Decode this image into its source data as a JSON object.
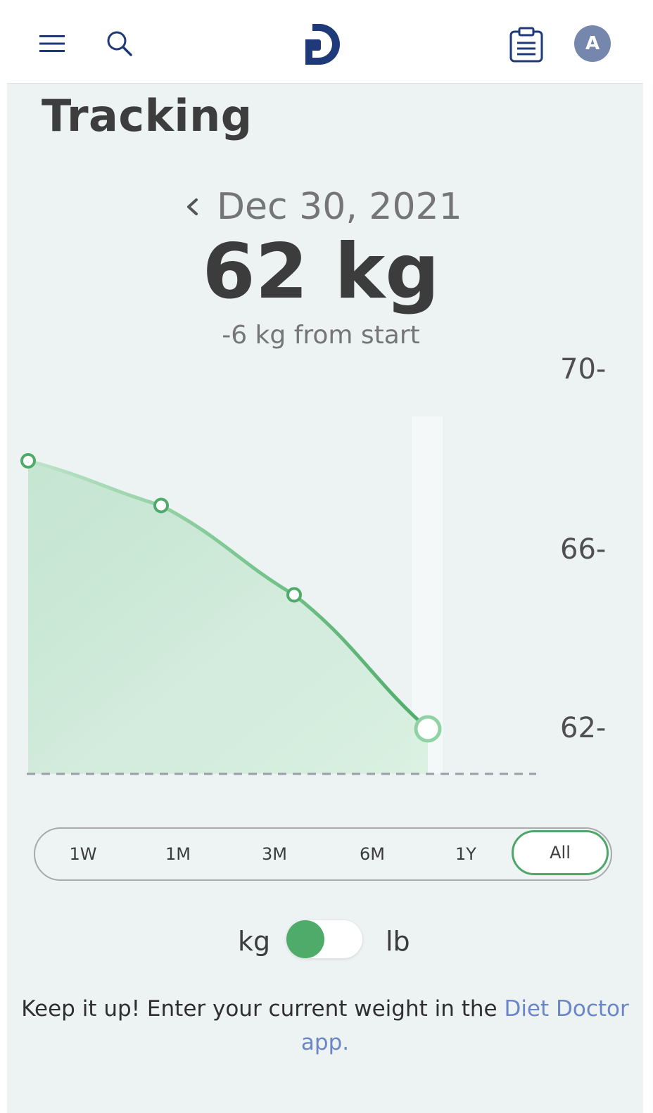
{
  "header": {
    "menu_icon": "hamburger-menu-icon",
    "search_icon": "search-icon",
    "logo_icon": "diet-doctor-logo-icon",
    "notes_icon": "clipboard-icon",
    "avatar_initial": "A",
    "brand_color": "#1f3a7a",
    "avatar_color": "#7587ad"
  },
  "page": {
    "title": "Tracking"
  },
  "summary": {
    "prev_icon": "chevron-left-icon",
    "date": "Dec 30, 2021",
    "current_weight": "62 kg",
    "change": "-6 kg from start"
  },
  "chart_data": {
    "type": "area",
    "x": [
      1,
      2,
      3,
      4
    ],
    "values": [
      68,
      67,
      65,
      62
    ],
    "selected_index": 3,
    "y_ticks": [
      "70-",
      "66-",
      "62-"
    ],
    "ylim": [
      61,
      70
    ],
    "line_color": "#4eab69",
    "grid": false
  },
  "periods": {
    "options": [
      "1W",
      "1M",
      "3M",
      "6M",
      "1Y",
      "All"
    ],
    "selected": "All",
    "accent": "#4ea769"
  },
  "units": {
    "left": "kg",
    "right": "lb",
    "selected": "kg"
  },
  "footer": {
    "message": "Keep it up! Enter your current weight in the ",
    "link": "Diet Doctor app."
  }
}
